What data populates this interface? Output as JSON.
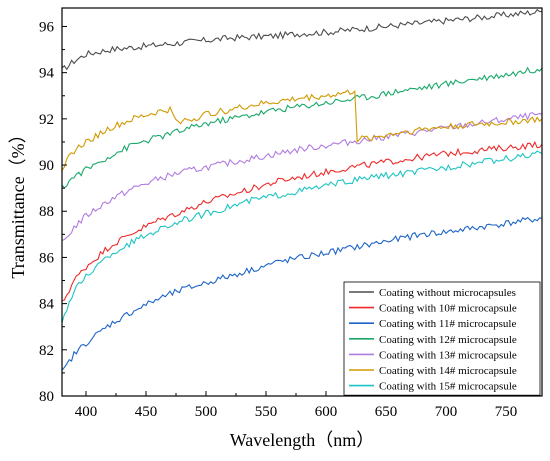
{
  "chart_data": {
    "type": "line",
    "xlabel": "Wavelength（nm）",
    "ylabel": "Transmittance（%）",
    "xlim": [
      380,
      780
    ],
    "ylim": [
      80,
      96.8
    ],
    "xticks": [
      400,
      450,
      500,
      550,
      600,
      650,
      700,
      750
    ],
    "yticks": [
      80,
      82,
      84,
      86,
      88,
      90,
      92,
      94,
      96
    ],
    "grid": false,
    "legend_position": "bottom-right",
    "series": [
      {
        "name": "Coating without microcapsules",
        "color": "#4d4d4d",
        "x": [
          380,
          390,
          400,
          420,
          440,
          460,
          480,
          500,
          520,
          540,
          560,
          580,
          600,
          620,
          640,
          660,
          680,
          700,
          720,
          740,
          760,
          780
        ],
        "y": [
          94.1,
          94.5,
          94.8,
          95.0,
          95.1,
          95.2,
          95.3,
          95.4,
          95.5,
          95.55,
          95.6,
          95.7,
          95.75,
          95.85,
          95.95,
          96.05,
          96.15,
          96.25,
          96.35,
          96.45,
          96.55,
          96.65
        ]
      },
      {
        "name": "Coating with 10# microcapsule",
        "color": "#ee2a2a",
        "x": [
          380,
          390,
          400,
          420,
          440,
          460,
          480,
          500,
          520,
          540,
          560,
          580,
          600,
          620,
          640,
          660,
          680,
          700,
          720,
          740,
          760,
          780
        ],
        "y": [
          84.0,
          85.0,
          85.6,
          86.5,
          87.1,
          87.6,
          88.0,
          88.4,
          88.7,
          89.0,
          89.3,
          89.5,
          89.7,
          89.9,
          90.05,
          90.2,
          90.35,
          90.5,
          90.6,
          90.7,
          90.8,
          90.9
        ]
      },
      {
        "name": "Coating with 11# microcapsule",
        "color": "#1e64c8",
        "x": [
          380,
          390,
          400,
          420,
          440,
          460,
          480,
          500,
          520,
          540,
          560,
          580,
          600,
          620,
          640,
          660,
          680,
          700,
          720,
          740,
          760,
          780
        ],
        "y": [
          81.0,
          81.8,
          82.3,
          83.1,
          83.7,
          84.2,
          84.6,
          84.9,
          85.2,
          85.5,
          85.8,
          86.0,
          86.2,
          86.4,
          86.6,
          86.8,
          87.0,
          87.1,
          87.25,
          87.4,
          87.55,
          87.7
        ]
      },
      {
        "name": "Coating with 12# microcapsule",
        "color": "#1aa86a",
        "x": [
          380,
          390,
          400,
          420,
          440,
          460,
          480,
          500,
          520,
          540,
          560,
          580,
          600,
          620,
          640,
          660,
          680,
          700,
          720,
          740,
          760,
          780
        ],
        "y": [
          89.0,
          89.5,
          89.8,
          90.4,
          90.9,
          91.2,
          91.5,
          91.8,
          92.0,
          92.2,
          92.4,
          92.55,
          92.7,
          92.85,
          93.0,
          93.2,
          93.35,
          93.5,
          93.7,
          93.85,
          94.0,
          94.2
        ]
      },
      {
        "name": "Coating with 13# microcapsule",
        "color": "#b07ce0",
        "x": [
          380,
          390,
          400,
          420,
          440,
          460,
          480,
          500,
          520,
          540,
          560,
          580,
          600,
          620,
          640,
          660,
          680,
          700,
          720,
          740,
          760,
          780
        ],
        "y": [
          86.6,
          87.3,
          87.8,
          88.5,
          89.0,
          89.4,
          89.7,
          89.9,
          90.1,
          90.3,
          90.5,
          90.7,
          90.85,
          91.0,
          91.15,
          91.3,
          91.45,
          91.6,
          91.75,
          91.9,
          92.05,
          92.2
        ]
      },
      {
        "name": "Coating with 14# microcapsule",
        "color": "#d19a00",
        "x": [
          380,
          390,
          400,
          420,
          440,
          460,
          470,
          475,
          490,
          500,
          520,
          540,
          560,
          580,
          600,
          620,
          624,
          626,
          640,
          660,
          680,
          700,
          720,
          740,
          760,
          780
        ],
        "y": [
          89.9,
          90.6,
          91.0,
          91.6,
          92.0,
          92.3,
          92.4,
          91.9,
          92.0,
          92.2,
          92.4,
          92.6,
          92.75,
          92.9,
          93.0,
          93.15,
          93.2,
          91.1,
          91.2,
          91.4,
          91.55,
          91.65,
          91.75,
          91.8,
          91.9,
          92.0
        ]
      },
      {
        "name": "Coating with 15# microcapsule",
        "color": "#1ec4c4",
        "x": [
          380,
          390,
          400,
          420,
          440,
          460,
          480,
          500,
          520,
          540,
          560,
          580,
          600,
          620,
          640,
          660,
          680,
          700,
          720,
          740,
          760,
          780
        ],
        "y": [
          83.3,
          84.5,
          85.2,
          86.1,
          86.7,
          87.2,
          87.6,
          87.9,
          88.2,
          88.5,
          88.7,
          88.9,
          89.1,
          89.3,
          89.5,
          89.6,
          89.75,
          89.9,
          90.05,
          90.2,
          90.35,
          90.5
        ]
      }
    ]
  }
}
